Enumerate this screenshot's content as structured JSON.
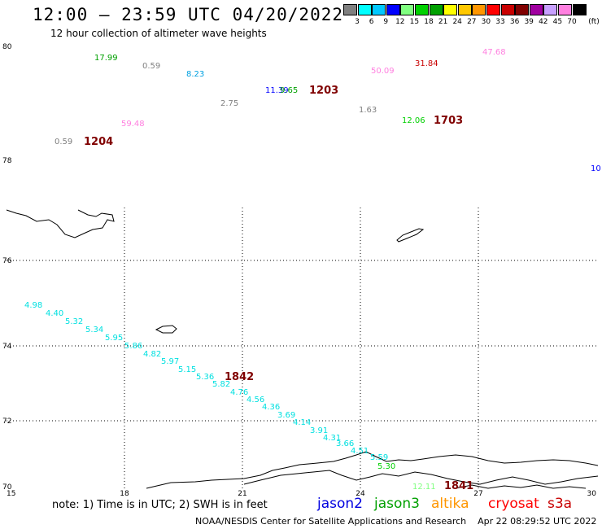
{
  "header": {
    "title": "12:00 — 23:59 UTC 04/20/2022",
    "subtitle": "12 hour collection of altimeter wave heights"
  },
  "legend": {
    "unit": "(ft)",
    "ticks": [
      "3",
      "6",
      "9",
      "12",
      "15",
      "18",
      "21",
      "24",
      "27",
      "30",
      "33",
      "36",
      "39",
      "42",
      "45",
      "70"
    ],
    "colors": [
      "#808080",
      "#00ffff",
      "#00c8ff",
      "#0000ff",
      "#80ff80",
      "#00d000",
      "#00a000",
      "#ffff00",
      "#ffc800",
      "#ff9600",
      "#ff0000",
      "#c80000",
      "#800000",
      "#a000a0",
      "#c8a0ff",
      "#ff80e0",
      "#000000"
    ]
  },
  "axes": {
    "lon_ticks": [
      "15",
      "18",
      "21",
      "24",
      "27",
      "30"
    ],
    "lat_ticks": [
      "80",
      "78",
      "76",
      "74",
      "72",
      "70"
    ]
  },
  "observations": [
    {
      "text": "17.99",
      "color": "#00a000"
    },
    {
      "text": "0.59",
      "color": "#808080"
    },
    {
      "text": "8.23",
      "color": "#00a0e0"
    },
    {
      "text": "11.39",
      "color": "#0000ff"
    },
    {
      "text": "9.65",
      "color": "#00a000"
    },
    {
      "text": "2.75",
      "color": "#808080"
    },
    {
      "text": "1.63",
      "color": "#808080"
    },
    {
      "text": "59.48",
      "color": "#ff80e0"
    },
    {
      "text": "0.59",
      "color": "#808080"
    },
    {
      "text": "50.09",
      "color": "#ff80e0"
    },
    {
      "text": "31.84",
      "color": "#c80000"
    },
    {
      "text": "47.68",
      "color": "#ff80e0"
    },
    {
      "text": "12.06",
      "color": "#00d000"
    },
    {
      "text": "10",
      "color": "#0000ff"
    },
    {
      "text": "4.98",
      "color": "#00e0e0"
    },
    {
      "text": "4.40",
      "color": "#00e0e0"
    },
    {
      "text": "5.32",
      "color": "#00e0e0"
    },
    {
      "text": "5.34",
      "color": "#00e0e0"
    },
    {
      "text": "5.95",
      "color": "#00e0e0"
    },
    {
      "text": "5.86",
      "color": "#00e0e0"
    },
    {
      "text": "4.82",
      "color": "#00e0e0"
    },
    {
      "text": "5.97",
      "color": "#00e0e0"
    },
    {
      "text": "5.15",
      "color": "#00e0e0"
    },
    {
      "text": "5.36",
      "color": "#00e0e0"
    },
    {
      "text": "5.82",
      "color": "#00e0e0"
    },
    {
      "text": "4.76",
      "color": "#00e0e0"
    },
    {
      "text": "4.56",
      "color": "#00e0e0"
    },
    {
      "text": "4.36",
      "color": "#00e0e0"
    },
    {
      "text": "3.69",
      "color": "#00e0e0"
    },
    {
      "text": "4.14",
      "color": "#00e0e0"
    },
    {
      "text": "3.91",
      "color": "#00e0e0"
    },
    {
      "text": "4.31",
      "color": "#00e0e0"
    },
    {
      "text": "3.66",
      "color": "#00e0e0"
    },
    {
      "text": "4.51",
      "color": "#00e0e0"
    },
    {
      "text": "5.59",
      "color": "#00e0e0"
    },
    {
      "text": "5.30",
      "color": "#00d000"
    },
    {
      "text": "12.11",
      "color": "#80ff80"
    }
  ],
  "pass_times": [
    "1204",
    "1203",
    "1703",
    "1842",
    "1841"
  ],
  "footer": {
    "note": "note: 1) Time is in UTC; 2) SWH is in feet",
    "missions": [
      {
        "name": "jason2",
        "color": "#0000e0"
      },
      {
        "name": "jason3",
        "color": "#00a000"
      },
      {
        "name": "altika",
        "color": "#ff9600"
      },
      {
        "name": "cryosat",
        "color": "#ff0000"
      },
      {
        "name": "s3a",
        "color": "#c80000"
      }
    ],
    "credit": "NOAA/NESDIS Center for Satellite Applications and Research",
    "timestamp": "Apr 22 08:29:52 UTC 2022"
  }
}
